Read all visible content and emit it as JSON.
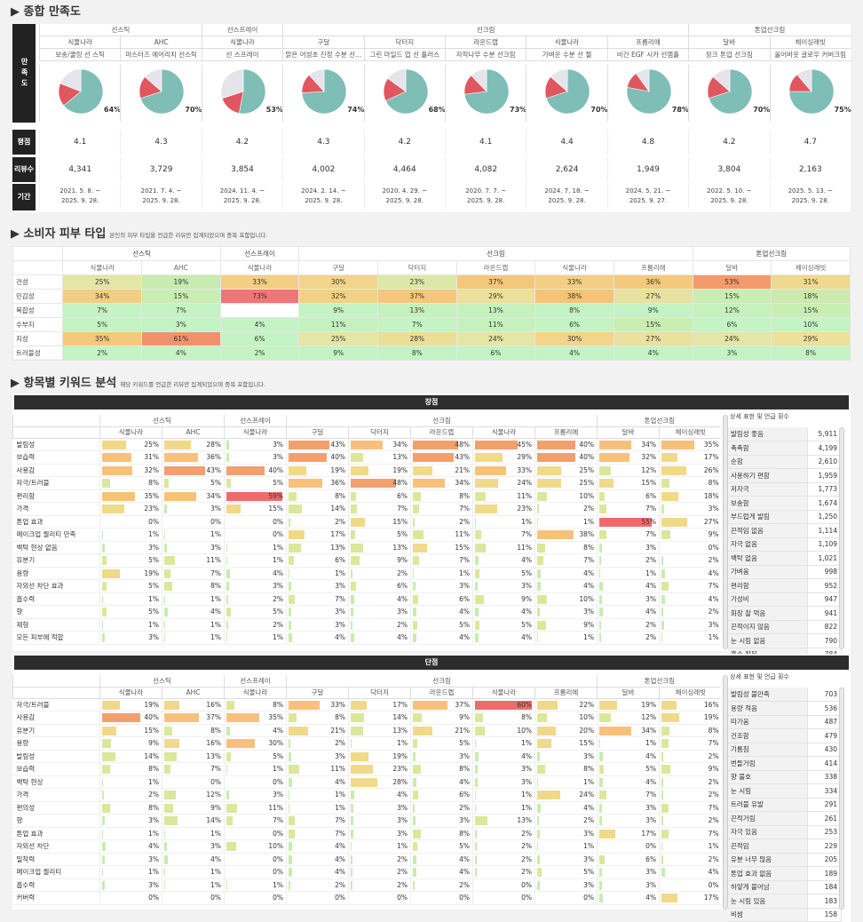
{
  "s1": {
    "title": "종합 만족도",
    "left_labels": [
      "만족도",
      "평점",
      "리뷰수",
      "기간"
    ],
    "categories": [
      {
        "name": "선스틱",
        "span": 2
      },
      {
        "name": "선스프레이",
        "span": 1
      },
      {
        "name": "선크림",
        "span": 5
      },
      {
        "name": "톤업선크림",
        "span": 2
      }
    ],
    "products": [
      {
        "brand": "식물나라",
        "name": "보송/쿨링 선 스틱",
        "pct": 64,
        "rating": "4.1",
        "reviews": "4,341",
        "period": [
          "2021. 5. 8. ~",
          "2025. 9. 28."
        ]
      },
      {
        "brand": "AHC",
        "name": "마스터즈 에어리치 선스틱",
        "pct": 70,
        "rating": "4.3",
        "reviews": "3,729",
        "period": [
          "2021. 7. 4. ~",
          "2025. 9. 28."
        ]
      },
      {
        "brand": "식물나라",
        "name": "선 스프레이",
        "pct": 53,
        "rating": "4.2",
        "reviews": "3,854",
        "period": [
          "2024. 11. 4. ~",
          "2025. 9. 28."
        ]
      },
      {
        "brand": "구달",
        "name": "맑은 어성초 진정 수분 선...",
        "pct": 74,
        "rating": "4.3",
        "reviews": "4,002",
        "period": [
          "2024. 2. 14. ~",
          "2025. 9. 28."
        ]
      },
      {
        "brand": "닥터지",
        "name": "그린 마일드 업 선 플러스",
        "pct": 68,
        "rating": "4.2",
        "reviews": "4,464",
        "period": [
          "2020. 4. 29. ~",
          "2025. 9. 28."
        ]
      },
      {
        "brand": "라운드랩",
        "name": "자작나무 수분 선크림",
        "pct": 73,
        "rating": "4.1",
        "reviews": "4,082",
        "period": [
          "2020. 7. 7. ~",
          "2025. 9. 28."
        ]
      },
      {
        "brand": "식물나라",
        "name": "가벼운 수분 선 젤",
        "pct": 70,
        "rating": "4.4",
        "reviews": "2,624",
        "period": [
          "2024. 7. 18. ~",
          "2025. 9. 28."
        ]
      },
      {
        "brand": "프롬리에",
        "name": "비건 EGF 시카 선앰플",
        "pct": 78,
        "rating": "4.8",
        "reviews": "1,949",
        "period": [
          "2024. 5. 21. ~",
          "2025. 9. 27."
        ]
      },
      {
        "brand": "달바",
        "name": "핑크 톤업 선크림",
        "pct": 70,
        "rating": "4.2",
        "reviews": "3,804",
        "period": [
          "2022. 5. 10. ~",
          "2025. 9. 28."
        ]
      },
      {
        "brand": "체이싱래빗",
        "name": "올어바웃 글로우 커버크림",
        "pct": 75,
        "rating": "4.7",
        "reviews": "2,163",
        "period": [
          "2025. 5. 13. ~",
          "2025. 9. 28."
        ]
      }
    ],
    "pie_colors": {
      "pos": "#7fbdb7",
      "neg": "#e0575f",
      "neu": "#e4e4ea"
    }
  },
  "s2": {
    "title": "소비자 피부 타입",
    "note": "본인의 피부 타입을 언급한 리뷰만 집계되었으며 중복 포함입니다.",
    "rows": [
      {
        "label": "건성",
        "values": [
          "25%",
          "19%",
          "33%",
          "30%",
          "23%",
          "37%",
          "33%",
          "36%",
          "53%",
          "31%"
        ],
        "colors": [
          "#e3e6a4",
          "#c6ecb0",
          "#f3ce83",
          "#f2d58a",
          "#dce8a6",
          "#f5c77a",
          "#f3ce83",
          "#f4c97c",
          "#f49a6b",
          "#f0d98e"
        ]
      },
      {
        "label": "민감성",
        "values": [
          "34%",
          "15%",
          "73%",
          "32%",
          "37%",
          "29%",
          "38%",
          "27%",
          "15%",
          "18%"
        ],
        "colors": [
          "#f3cd82",
          "#c9eeb2",
          "#f07575",
          "#f2d186",
          "#f5c77a",
          "#ede09a",
          "#f5c477",
          "#e8e1a0",
          "#c9eeb2",
          "#cdeaae"
        ]
      },
      {
        "label": "복합성",
        "values": [
          "7%",
          "7%",
          "",
          "9%",
          "13%",
          "13%",
          "8%",
          "9%",
          "12%",
          "15%"
        ],
        "colors": [
          "#c4f3c4",
          "#c4f3c4",
          "#ffffff",
          "#c4f3c4",
          "#c4f1bc",
          "#c4f1bc",
          "#c4f3c4",
          "#c4f3c4",
          "#c4f1bc",
          "#c9eeb2"
        ]
      },
      {
        "label": "수부지",
        "values": [
          "5%",
          "3%",
          "4%",
          "11%",
          "7%",
          "11%",
          "6%",
          "15%",
          "6%",
          "10%"
        ],
        "colors": [
          "#c4f3c4",
          "#c4f3c4",
          "#c4f3c4",
          "#c4f1bc",
          "#c4f3c4",
          "#c4f1bc",
          "#c4f3c4",
          "#c9eeb2",
          "#c4f3c4",
          "#c4f3c4"
        ]
      },
      {
        "label": "지성",
        "values": [
          "35%",
          "61%",
          "6%",
          "25%",
          "28%",
          "24%",
          "30%",
          "27%",
          "24%",
          "29%"
        ],
        "colors": [
          "#f4c97c",
          "#f2926d",
          "#c4f3c4",
          "#e3e6a4",
          "#ebdf98",
          "#e3e6a4",
          "#f2d58a",
          "#e8e1a0",
          "#e3e6a4",
          "#ede09a"
        ]
      },
      {
        "label": "트러블성",
        "values": [
          "2%",
          "4%",
          "2%",
          "9%",
          "8%",
          "6%",
          "4%",
          "4%",
          "3%",
          "8%"
        ],
        "colors": [
          "#c4f3c4",
          "#c4f3c4",
          "#c4f3c4",
          "#c4f3c4",
          "#c4f3c4",
          "#c4f3c4",
          "#c4f3c4",
          "#c4f3c4",
          "#c4f3c4",
          "#c4f3c4"
        ]
      }
    ]
  },
  "s3": {
    "title": "항목별 키워드 분석",
    "note": "해당 키워드를 언급한 리뷰만 집계되었으며 중복 포함입니다.",
    "pos_header": "장점",
    "neg_header": "단점",
    "side_title": "상세 표현 및 언급 횟수",
    "pos_rows": [
      {
        "label": "발림성",
        "v": [
          25,
          28,
          3,
          43,
          34,
          48,
          45,
          40,
          34,
          35
        ]
      },
      {
        "label": "보습력",
        "v": [
          31,
          36,
          3,
          40,
          13,
          43,
          29,
          40,
          32,
          17
        ]
      },
      {
        "label": "사용감",
        "v": [
          32,
          43,
          40,
          19,
          19,
          21,
          33,
          25,
          12,
          26
        ]
      },
      {
        "label": "자극/트러블",
        "v": [
          8,
          5,
          5,
          36,
          48,
          34,
          24,
          25,
          15,
          8
        ]
      },
      {
        "label": "편리함",
        "v": [
          35,
          34,
          59,
          8,
          6,
          8,
          11,
          10,
          6,
          18
        ]
      },
      {
        "label": "가격",
        "v": [
          23,
          3,
          15,
          14,
          7,
          7,
          23,
          2,
          7,
          3
        ]
      },
      {
        "label": "톤업 효과",
        "v": [
          0,
          0,
          0,
          2,
          15,
          2,
          1,
          1,
          55,
          27
        ]
      },
      {
        "label": "메이크업 퀄리티 만족",
        "v": [
          1,
          1,
          0,
          17,
          5,
          11,
          7,
          38,
          7,
          9
        ]
      },
      {
        "label": "백탁 현상 없음",
        "v": [
          3,
          3,
          1,
          13,
          13,
          15,
          11,
          8,
          3,
          0
        ]
      },
      {
        "label": "유분기",
        "v": [
          5,
          11,
          1,
          6,
          9,
          7,
          4,
          7,
          2,
          2
        ]
      },
      {
        "label": "용량",
        "v": [
          19,
          7,
          4,
          1,
          2,
          1,
          5,
          4,
          1,
          4
        ]
      },
      {
        "label": "자외선 차단 효과",
        "v": [
          5,
          8,
          3,
          3,
          6,
          3,
          3,
          4,
          4,
          7
        ]
      },
      {
        "label": "흡수력",
        "v": [
          1,
          1,
          2,
          7,
          4,
          6,
          9,
          10,
          3,
          4
        ]
      },
      {
        "label": "향",
        "v": [
          5,
          4,
          5,
          3,
          3,
          4,
          4,
          3,
          4,
          2
        ]
      },
      {
        "label": "제형",
        "v": [
          1,
          1,
          2,
          3,
          2,
          5,
          5,
          9,
          2,
          3
        ]
      },
      {
        "label": "모든 피부에 적합",
        "v": [
          3,
          1,
          1,
          4,
          4,
          4,
          4,
          1,
          2,
          1
        ]
      }
    ],
    "neg_rows": [
      {
        "label": "자극/트러블",
        "v": [
          19,
          16,
          8,
          33,
          17,
          37,
          60,
          22,
          19,
          16
        ]
      },
      {
        "label": "사용감",
        "v": [
          40,
          37,
          35,
          8,
          14,
          9,
          8,
          10,
          12,
          19
        ]
      },
      {
        "label": "유분기",
        "v": [
          15,
          8,
          4,
          21,
          13,
          21,
          10,
          20,
          34,
          8
        ]
      },
      {
        "label": "용량",
        "v": [
          9,
          16,
          30,
          2,
          1,
          5,
          1,
          15,
          1,
          7
        ]
      },
      {
        "label": "발림성",
        "v": [
          14,
          13,
          5,
          3,
          19,
          3,
          4,
          3,
          4,
          2
        ]
      },
      {
        "label": "보습력",
        "v": [
          8,
          7,
          1,
          11,
          23,
          8,
          3,
          8,
          5,
          9
        ]
      },
      {
        "label": "백탁 현상",
        "v": [
          1,
          0,
          0,
          4,
          28,
          4,
          3,
          1,
          4,
          2
        ]
      },
      {
        "label": "가격",
        "v": [
          2,
          12,
          3,
          1,
          4,
          6,
          1,
          24,
          7,
          2
        ]
      },
      {
        "label": "편의성",
        "v": [
          8,
          9,
          11,
          1,
          3,
          2,
          1,
          4,
          3,
          7
        ]
      },
      {
        "label": "향",
        "v": [
          3,
          14,
          7,
          7,
          3,
          3,
          13,
          2,
          3,
          2
        ]
      },
      {
        "label": "톤업 효과",
        "v": [
          1,
          1,
          0,
          7,
          3,
          8,
          2,
          3,
          17,
          7
        ]
      },
      {
        "label": "자외선 차단",
        "v": [
          4,
          3,
          10,
          4,
          1,
          5,
          2,
          1,
          0,
          1
        ]
      },
      {
        "label": "밀착력",
        "v": [
          3,
          4,
          0,
          4,
          2,
          4,
          2,
          3,
          6,
          2
        ]
      },
      {
        "label": "메이크업 퀄리티",
        "v": [
          1,
          1,
          0,
          4,
          2,
          4,
          2,
          5,
          3,
          4
        ]
      },
      {
        "label": "흡수력",
        "v": [
          3,
          1,
          1,
          2,
          2,
          2,
          0,
          3,
          3,
          0
        ]
      },
      {
        "label": "커버력",
        "v": [
          0,
          0,
          0,
          0,
          0,
          0,
          0,
          0,
          4,
          17
        ]
      }
    ],
    "pos_side": [
      [
        "발림성 좋음",
        "5,911"
      ],
      [
        "촉촉함",
        "4,199"
      ],
      [
        "순함",
        "2,610"
      ],
      [
        "사용하기 편함",
        "1,959"
      ],
      [
        "저자극",
        "1,773"
      ],
      [
        "보송함",
        "1,674"
      ],
      [
        "부드럽게 발림",
        "1,250"
      ],
      [
        "끈적임 없음",
        "1,114"
      ],
      [
        "자극 없음",
        "1,109"
      ],
      [
        "백탁 없음",
        "1,021"
      ],
      [
        "가벼움",
        "998"
      ],
      [
        "편리함",
        "952"
      ],
      [
        "가성비",
        "947"
      ],
      [
        "화장 잘 먹음",
        "941"
      ],
      [
        "끈적이지 않음",
        "822"
      ],
      [
        "눈 시림 없음",
        "790"
      ],
      [
        "흡수 잘됨",
        "784"
      ]
    ],
    "neg_side": [
      [
        "발림성 불만족",
        "703"
      ],
      [
        "용량 적음",
        "536"
      ],
      [
        "따가움",
        "487"
      ],
      [
        "건조함",
        "479"
      ],
      [
        "기름짐",
        "430"
      ],
      [
        "번들거림",
        "414"
      ],
      [
        "향 불호",
        "338"
      ],
      [
        "눈 시림",
        "334"
      ],
      [
        "트러블 유발",
        "291"
      ],
      [
        "끈적거림",
        "261"
      ],
      [
        "자극 있음",
        "253"
      ],
      [
        "끈적임",
        "229"
      ],
      [
        "유분 너무 많음",
        "205"
      ],
      [
        "톤업 효과 없음",
        "189"
      ],
      [
        "하얗게 뭍어남",
        "184"
      ],
      [
        "눈 시림 있음",
        "183"
      ],
      [
        "비쌈",
        "158"
      ]
    ]
  }
}
